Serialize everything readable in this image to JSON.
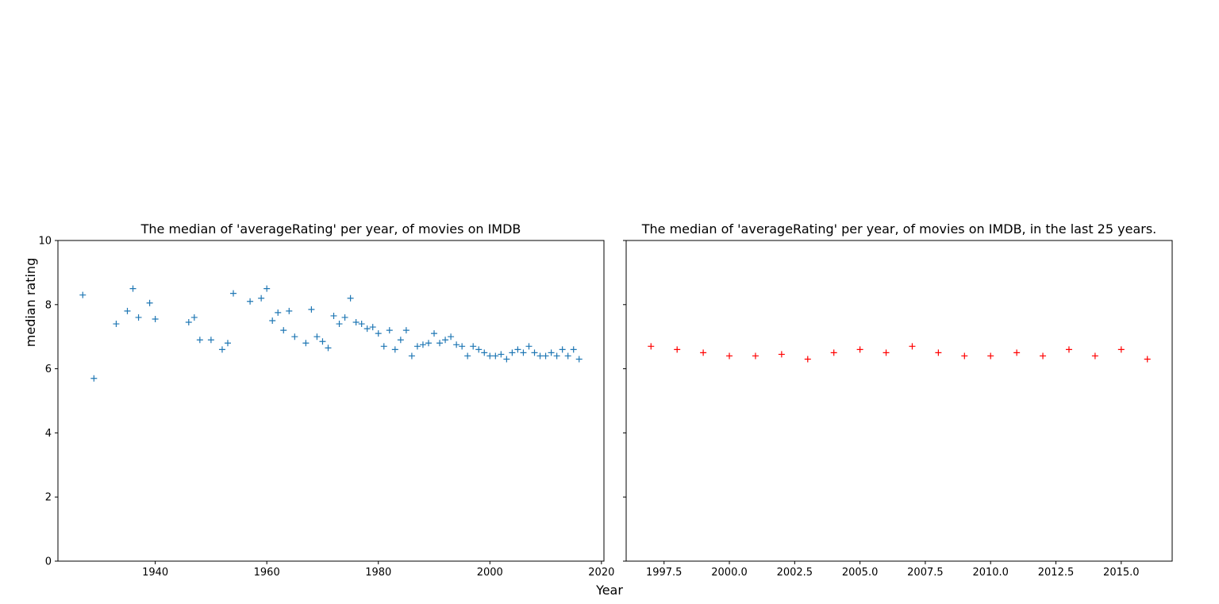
{
  "figure": {
    "xlabel": "Year",
    "ylabel": "median rating"
  },
  "chart_data": [
    {
      "type": "scatter",
      "title": "The median of 'averageRating' per year, of movies on IMDB",
      "marker": "+",
      "color": "#1f77b4",
      "xlim": [
        1922.55,
        2020.45
      ],
      "ylim": [
        0,
        10
      ],
      "x_ticks": [
        1940,
        1960,
        1980,
        2000,
        2020
      ],
      "y_ticks": [
        0,
        2,
        4,
        6,
        8,
        10
      ],
      "x_tick_labels": [
        "1940",
        "1960",
        "1980",
        "2000",
        "2020"
      ],
      "y_tick_labels": [
        "0",
        "2",
        "4",
        "6",
        "8",
        "10"
      ],
      "x": [
        1927,
        1929,
        1933,
        1935,
        1936,
        1937,
        1939,
        1940,
        1946,
        1947,
        1948,
        1950,
        1952,
        1953,
        1954,
        1957,
        1959,
        1960,
        1961,
        1962,
        1963,
        1964,
        1965,
        1967,
        1968,
        1969,
        1970,
        1971,
        1972,
        1973,
        1974,
        1975,
        1976,
        1977,
        1978,
        1979,
        1980,
        1981,
        1982,
        1983,
        1984,
        1985,
        1986,
        1987,
        1988,
        1989,
        1990,
        1991,
        1992,
        1993,
        1994,
        1995,
        1996,
        1997,
        1998,
        1999,
        2000,
        2001,
        2002,
        2003,
        2004,
        2005,
        2006,
        2007,
        2008,
        2009,
        2010,
        2011,
        2012,
        2013,
        2014,
        2015,
        2016
      ],
      "y": [
        8.3,
        5.7,
        7.4,
        7.8,
        8.5,
        7.6,
        8.05,
        7.55,
        7.45,
        7.6,
        6.9,
        6.9,
        6.6,
        6.8,
        8.35,
        8.1,
        8.2,
        8.5,
        7.5,
        7.75,
        7.2,
        7.8,
        7.0,
        6.8,
        7.85,
        7.0,
        6.85,
        6.65,
        7.65,
        7.4,
        7.6,
        8.2,
        7.45,
        7.4,
        7.25,
        7.3,
        7.1,
        6.7,
        7.2,
        6.6,
        6.9,
        7.2,
        6.4,
        6.7,
        6.75,
        6.8,
        7.1,
        6.8,
        6.9,
        7.0,
        6.75,
        6.7,
        6.4,
        6.7,
        6.6,
        6.5,
        6.4,
        6.4,
        6.45,
        6.3,
        6.5,
        6.6,
        6.5,
        6.7,
        6.5,
        6.4,
        6.4,
        6.5,
        6.4,
        6.6,
        6.4,
        6.6,
        6.3
      ]
    },
    {
      "type": "scatter",
      "title": "The median of 'averageRating' per year, of movies on IMDB, in the last 25 years.",
      "marker": "+",
      "color": "#ff0000",
      "xlim": [
        1996.05,
        2016.95
      ],
      "ylim": [
        0,
        10
      ],
      "x_ticks": [
        1997.5,
        2000.0,
        2002.5,
        2005.0,
        2007.5,
        2010.0,
        2012.5,
        2015.0
      ],
      "y_ticks": [
        0,
        2,
        4,
        6,
        8,
        10
      ],
      "x_tick_labels": [
        "1997.5",
        "2000.0",
        "2002.5",
        "2005.0",
        "2007.5",
        "2010.0",
        "2012.5",
        "2015.0"
      ],
      "y_tick_labels": [],
      "x": [
        1997,
        1998,
        1999,
        2000,
        2001,
        2002,
        2003,
        2004,
        2005,
        2006,
        2007,
        2008,
        2009,
        2010,
        2011,
        2012,
        2013,
        2014,
        2015,
        2016
      ],
      "y": [
        6.7,
        6.6,
        6.5,
        6.4,
        6.4,
        6.45,
        6.3,
        6.5,
        6.6,
        6.5,
        6.7,
        6.5,
        6.4,
        6.4,
        6.5,
        6.4,
        6.6,
        6.4,
        6.6,
        6.3
      ]
    }
  ]
}
